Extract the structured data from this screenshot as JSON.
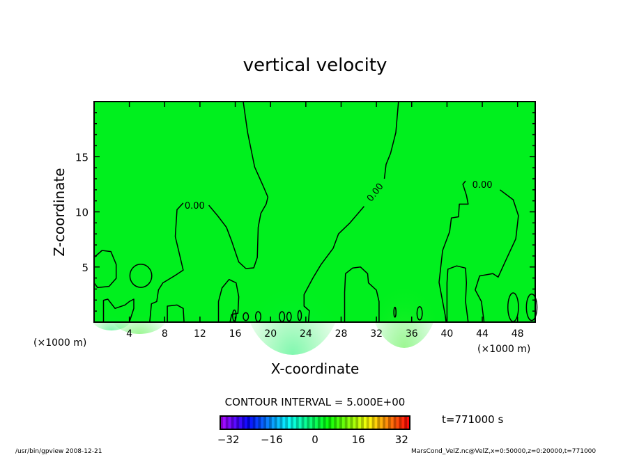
{
  "chart_data": {
    "type": "contour",
    "title": "vertical velocity",
    "xlabel": "X-coordinate",
    "ylabel": "Z-coordinate",
    "x_unit": "(×1000 m)",
    "y_unit": "(×1000 m)",
    "xlim": [
      0,
      50
    ],
    "ylim": [
      0,
      20
    ],
    "x_ticks": [
      4,
      8,
      12,
      16,
      20,
      24,
      28,
      32,
      36,
      40,
      44,
      48
    ],
    "y_ticks": [
      5,
      10,
      15
    ],
    "contour_interval_label": "CONTOUR INTERVAL = 5.000E+00",
    "contour_label": "0.00",
    "fill_color": "#00f01e",
    "contours": [
      {
        "name": "zero-contour-a",
        "labels": [
          [
            11.4,
            10.6
          ]
        ],
        "points": [
          [
            16.9,
            20
          ],
          [
            17.4,
            17.2
          ],
          [
            18.2,
            14.07
          ],
          [
            19.2,
            12.28
          ],
          [
            19.7,
            11.34
          ],
          [
            19.5,
            10.7
          ],
          [
            18.9,
            9.87
          ],
          [
            18.6,
            8.6
          ],
          [
            18.5,
            5.87
          ],
          [
            18.1,
            4.92
          ],
          [
            17.2,
            4.86
          ],
          [
            16.4,
            5.45
          ],
          [
            15.6,
            7.34
          ],
          [
            15.0,
            8.6
          ],
          [
            14.0,
            9.65
          ],
          [
            13.0,
            10.6
          ],
          null,
          [
            10.1,
            10.8
          ],
          [
            9.4,
            10.2
          ],
          [
            9.2,
            7.76
          ],
          [
            9.7,
            6.08
          ],
          [
            10.1,
            4.71
          ],
          [
            9.1,
            4.19
          ],
          [
            7.8,
            3.56
          ],
          [
            7.3,
            2.92
          ],
          [
            7.1,
            1.87
          ],
          [
            6.5,
            1.66
          ],
          [
            6.3,
            0
          ]
        ]
      },
      {
        "name": "zero-contour-b",
        "labels": [
          [
            31.8,
            11.8
          ]
        ],
        "points": [
          [
            34.5,
            20
          ],
          [
            34.2,
            17.2
          ],
          [
            33.6,
            15.3
          ],
          [
            33.1,
            14.3
          ],
          [
            32.9,
            13.0
          ],
          null,
          [
            30.6,
            10.5
          ],
          [
            29.0,
            9.0
          ],
          [
            27.7,
            8.0
          ],
          [
            27.1,
            6.7
          ],
          [
            25.7,
            5.2
          ],
          [
            24.8,
            4.0
          ],
          [
            23.8,
            2.5
          ],
          [
            23.8,
            1.45
          ],
          [
            24.4,
            1.03
          ],
          [
            24.3,
            0
          ]
        ]
      },
      {
        "name": "zero-contour-c",
        "labels": [
          [
            44.0,
            12.5
          ]
        ],
        "points": [
          [
            39.9,
            0
          ],
          [
            39.8,
            0.6
          ],
          [
            39.1,
            3.6
          ],
          [
            39.5,
            6.5
          ],
          [
            40.3,
            8.2
          ],
          [
            40.5,
            9.45
          ],
          [
            41.3,
            9.55
          ],
          [
            41.4,
            10.7
          ],
          [
            42.4,
            10.7
          ],
          [
            42.2,
            11.5
          ],
          [
            41.8,
            12.5
          ],
          [
            42.1,
            12.8
          ],
          null,
          [
            46.0,
            12.0
          ],
          [
            47.5,
            11.1
          ],
          [
            48.1,
            9.65
          ],
          [
            47.8,
            7.55
          ],
          [
            46.7,
            5.66
          ],
          [
            45.8,
            4.08
          ],
          [
            45.2,
            4.4
          ],
          [
            43.7,
            4.19
          ],
          [
            43.2,
            2.92
          ],
          [
            43.9,
            1.87
          ],
          [
            44.2,
            0
          ]
        ]
      },
      {
        "name": "loop-left",
        "closed": true,
        "points": [
          [
            0,
            5.87
          ],
          [
            0.9,
            6.5
          ],
          [
            1.9,
            6.4
          ],
          [
            2.5,
            5.24
          ],
          [
            2.5,
            3.97
          ],
          [
            1.7,
            3.24
          ],
          [
            0.4,
            3.13
          ],
          [
            0,
            3.56
          ]
        ]
      },
      {
        "name": "bump-14",
        "points": [
          [
            14.1,
            0
          ],
          [
            14.1,
            1.87
          ],
          [
            14.5,
            3.1
          ],
          [
            15.3,
            3.87
          ],
          [
            16.1,
            3.56
          ],
          [
            16.4,
            2.3
          ],
          [
            16.3,
            0.8
          ],
          [
            15.6,
            0.7
          ],
          [
            15.4,
            0
          ]
        ]
      },
      {
        "name": "bump-28",
        "points": [
          [
            28.4,
            0
          ],
          [
            28.4,
            2.7
          ],
          [
            28.5,
            4.4
          ],
          [
            29.3,
            4.9
          ],
          [
            30.2,
            5.0
          ],
          [
            31.0,
            4.4
          ],
          [
            31.1,
            3.56
          ],
          [
            32.0,
            2.9
          ],
          [
            32.3,
            1.87
          ],
          [
            32.3,
            0
          ]
        ]
      },
      {
        "name": "bump-40",
        "points": [
          [
            40.0,
            0
          ],
          [
            40.0,
            3.56
          ],
          [
            40.1,
            4.8
          ],
          [
            41.1,
            5.1
          ],
          [
            42.1,
            4.9
          ],
          [
            42.2,
            3.56
          ],
          [
            42.1,
            1.87
          ],
          [
            42.4,
            0
          ]
        ]
      },
      {
        "name": "bump-1",
        "points": [
          [
            1.07,
            0
          ],
          [
            1.07,
            1.98
          ],
          [
            1.56,
            2.08
          ],
          [
            2.38,
            1.24
          ],
          [
            3.5,
            1.55
          ],
          [
            4.0,
            1.87
          ],
          [
            4.5,
            2.08
          ],
          [
            4.5,
            1.24
          ],
          [
            4.0,
            0
          ]
        ]
      },
      {
        "name": "bump-8",
        "points": [
          [
            8.3,
            0
          ],
          [
            8.3,
            1.45
          ],
          [
            9.4,
            1.55
          ],
          [
            10.1,
            1.24
          ],
          [
            10.2,
            0
          ]
        ]
      }
    ],
    "ellipses": [
      {
        "name": "loop-5",
        "cx": 5.3,
        "cz": 4.2,
        "rx": 1.24,
        "rz": 1.05
      },
      {
        "name": "loop-47",
        "cx": 47.5,
        "cz": 1.35,
        "rx": 0.6,
        "rz": 1.3
      },
      {
        "name": "loop-49",
        "cx": 49.6,
        "cz": 1.35,
        "rx": 0.6,
        "rz": 1.2
      },
      {
        "name": "loop-17",
        "cx": 17.2,
        "cz": 0.5,
        "rx": 0.3,
        "rz": 0.35
      },
      {
        "name": "loop-21",
        "cx": 21.3,
        "cz": 0.5,
        "rx": 0.3,
        "rz": 0.45
      },
      {
        "name": "loop-15b",
        "cx": 15.9,
        "cz": 0.6,
        "rx": 0.2,
        "rz": 0.5
      },
      {
        "name": "loop-18",
        "cx": 18.6,
        "cz": 0.5,
        "rx": 0.3,
        "rz": 0.45
      },
      {
        "name": "loop-22",
        "cx": 22.1,
        "cz": 0.5,
        "rx": 0.25,
        "rz": 0.4
      },
      {
        "name": "loop-23",
        "cx": 23.3,
        "cz": 0.6,
        "rx": 0.2,
        "rz": 0.45
      },
      {
        "name": "loop-34",
        "cx": 34.1,
        "cz": 0.9,
        "rx": 0.12,
        "rz": 0.45
      },
      {
        "name": "loop-37",
        "cx": 36.9,
        "cz": 0.8,
        "rx": 0.3,
        "rz": 0.6
      }
    ],
    "colorbar": {
      "range": [
        -35,
        35
      ],
      "ticks": [
        -32,
        -16,
        0,
        16,
        32
      ],
      "tick_labels": [
        "−32",
        "−16",
        "0",
        "16",
        "32"
      ]
    },
    "time_label": "t=771000 s",
    "footer_left": "/usr/bin/gpview   2008-12-21",
    "footer_right": "MarsCond_VelZ.nc@VelZ,x=0:50000,z=0:20000,t=771000"
  }
}
